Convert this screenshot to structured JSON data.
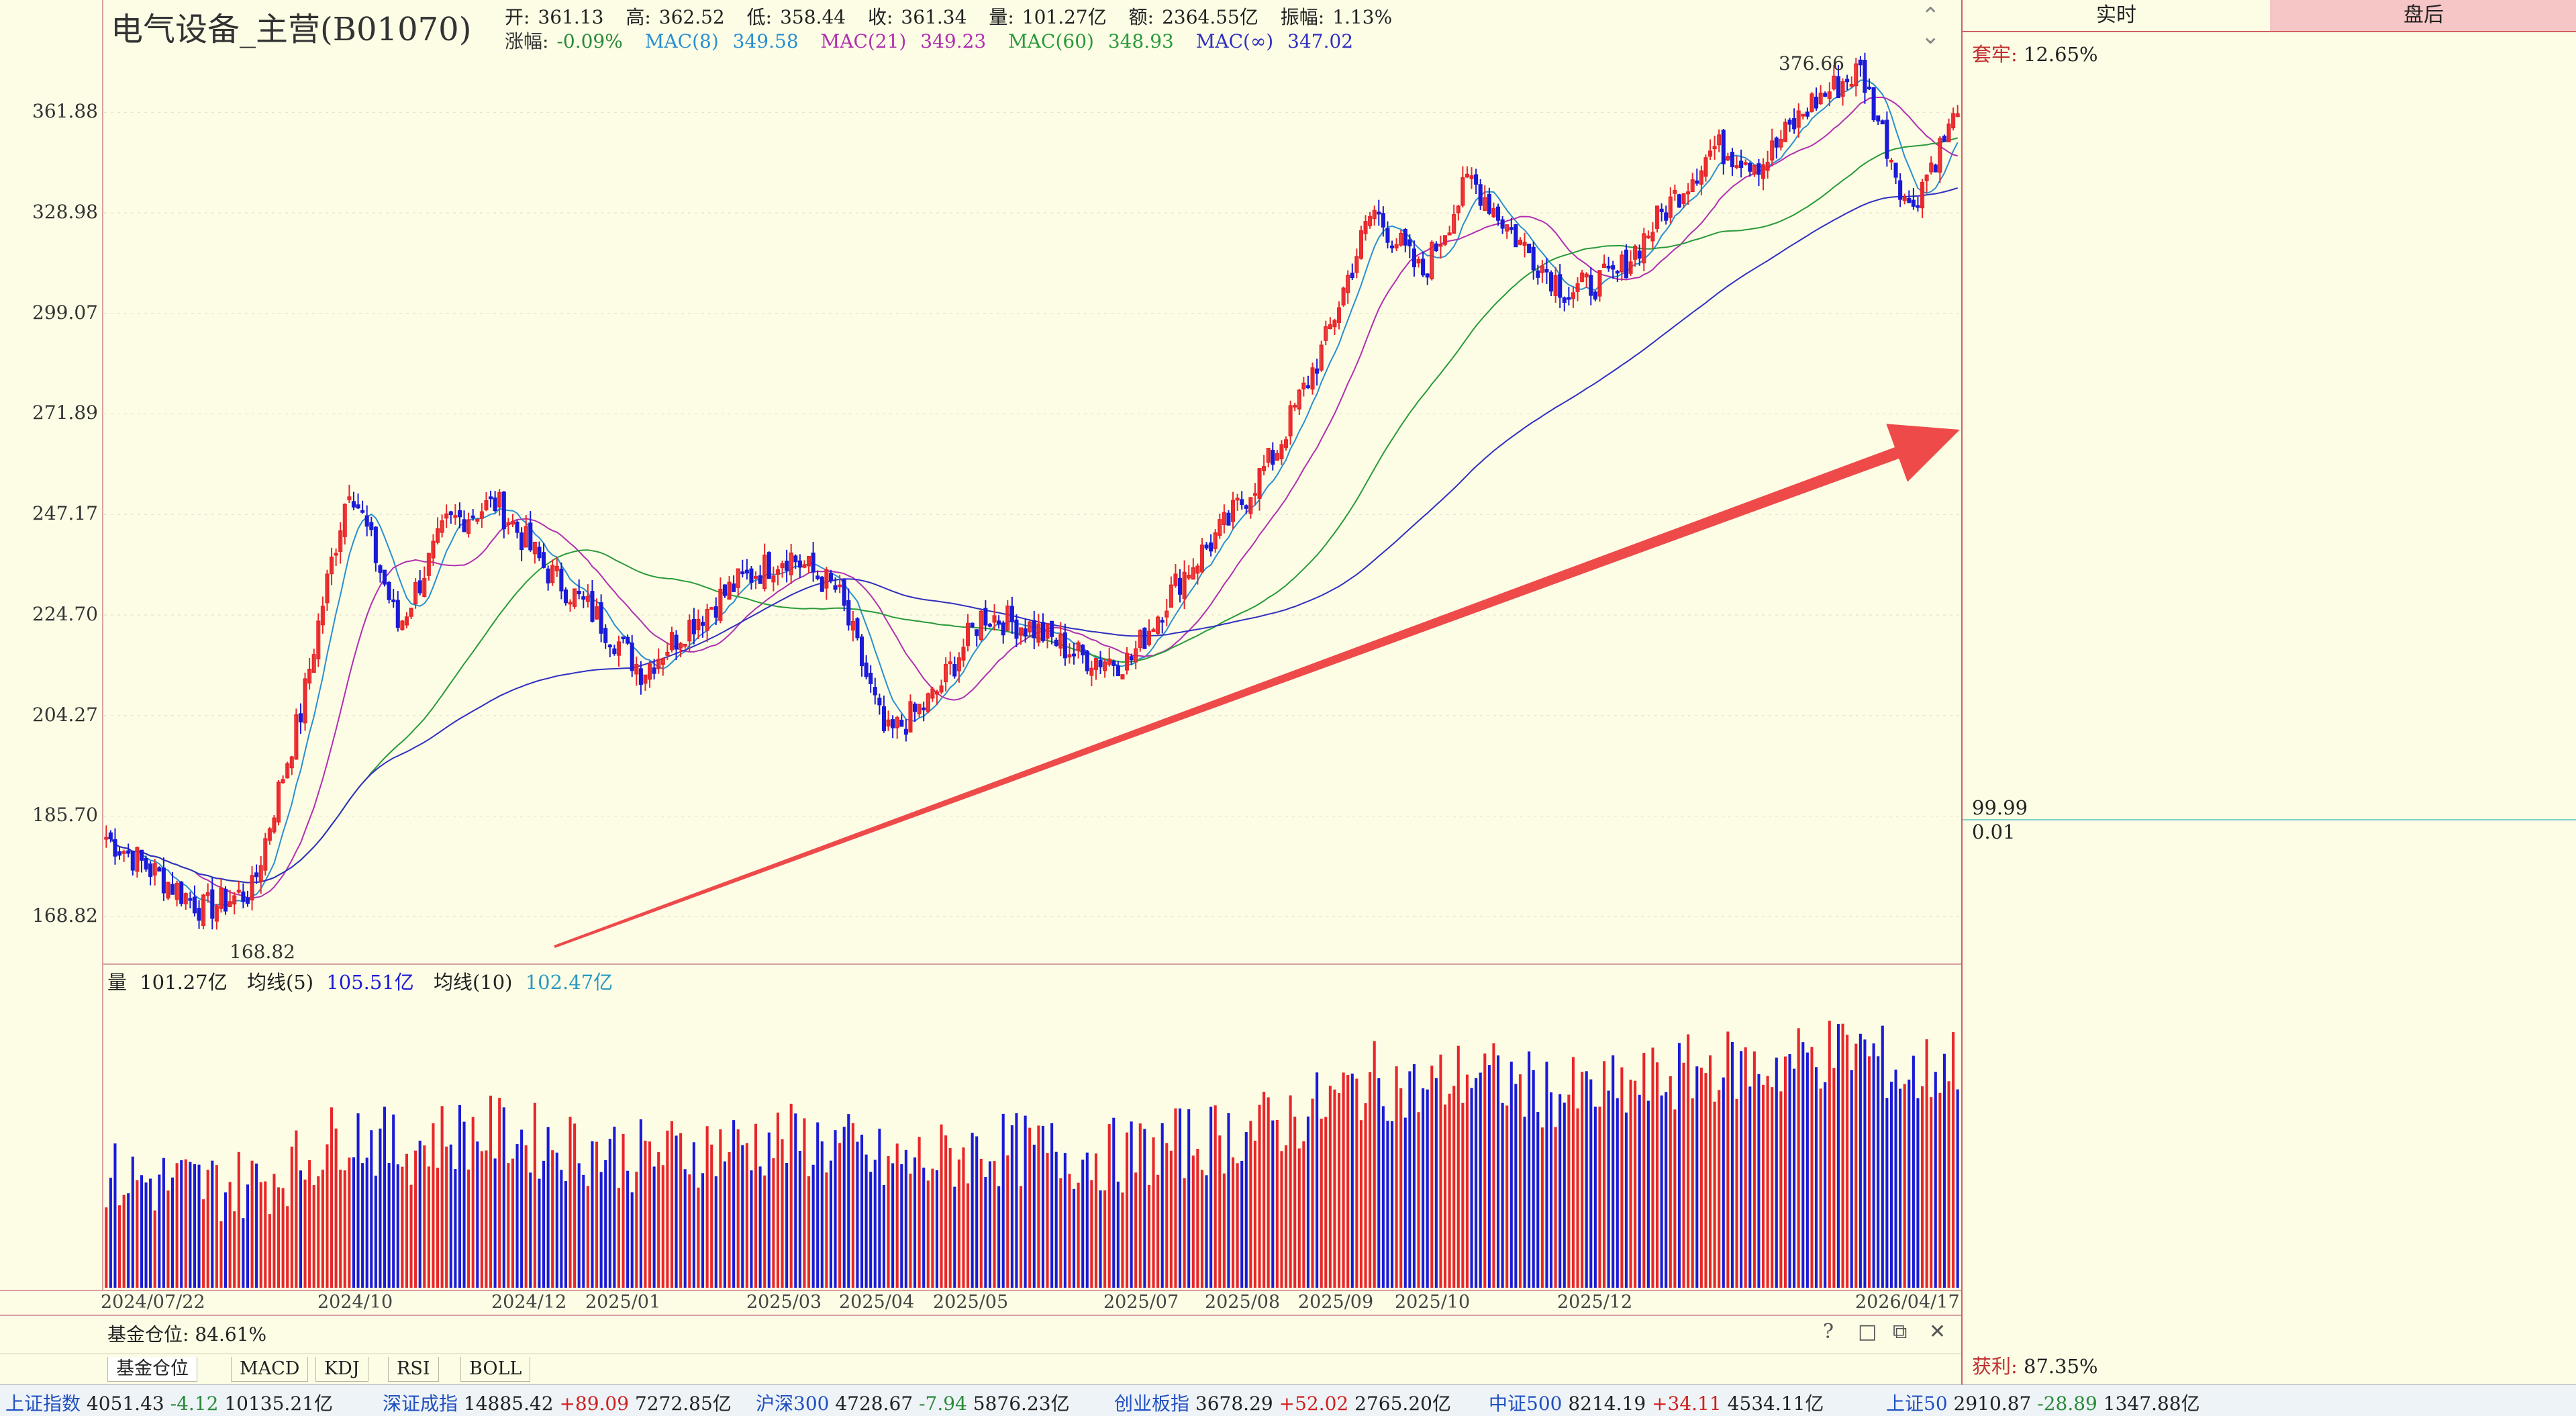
{
  "header": {
    "title": "电气设备_主营(B01070)",
    "open_label": "开:",
    "open": "361.13",
    "high_label": "高:",
    "high": "362.52",
    "low_label": "低:",
    "low": "358.44",
    "close_label": "收:",
    "close": "361.34",
    "volume_label": "量:",
    "volume": "101.27亿",
    "amount_label": "额:",
    "amount": "2364.55亿",
    "amplitude_label": "振幅:",
    "amplitude": "1.13%",
    "change_label": "涨幅:",
    "change": "-0.09%",
    "ma8_label": "MAC(8)",
    "ma8": "349.58",
    "ma21_label": "MAC(21)",
    "ma21": "349.23",
    "ma60_label": "MAC(60)",
    "ma60": "348.93",
    "mainf_label": "MAC(∞)",
    "mainf": "347.02"
  },
  "price_axis": [
    "361.88",
    "328.98",
    "299.07",
    "271.89",
    "247.17",
    "224.70",
    "204.27",
    "185.70",
    "168.82"
  ],
  "annotations": {
    "high_mark": "376.66",
    "low_mark": "168.82"
  },
  "volume_legend": {
    "vol_label": "量",
    "vol": "101.27亿",
    "ma5_label": "均线(5)",
    "ma5": "105.51亿",
    "ma10_label": "均线(10)",
    "ma10": "102.47亿"
  },
  "date_axis": [
    "2024/07/22",
    "2024/10",
    "2024/12",
    "2025/01",
    "2025/03",
    "2025/04",
    "2025/05",
    "2025/07",
    "2025/08",
    "2025/09",
    "2025/10",
    "2025/12",
    "2026/04/17"
  ],
  "fund_position": {
    "label": "基金仓位:",
    "value": "84.61%"
  },
  "window_controls": [
    "?",
    "□",
    "⧉",
    "✕"
  ],
  "indicator_tabs": [
    "基金仓位",
    "MACD",
    "KDJ",
    "RSI",
    "BOLL"
  ],
  "right_panel": {
    "tab_realtime": "实时",
    "tab_after": "盘后",
    "trapped_label": "套牢:",
    "trapped": "12.65%",
    "price_level_top": "99.99",
    "price_level_bottom": "0.01",
    "profit_label": "获利:",
    "profit": "87.35%"
  },
  "ticker": [
    {
      "name": "上证指数",
      "price": "4051.43",
      "chg": "-4.12",
      "amt": "10135.21亿"
    },
    {
      "name": "深证成指",
      "price": "14885.42",
      "chg": "+89.09",
      "amt": "7272.85亿"
    },
    {
      "name": "沪深300",
      "price": "4728.67",
      "chg": "-7.94",
      "amt": "5876.23亿"
    },
    {
      "name": "创业板指",
      "price": "3678.29",
      "chg": "+52.02",
      "amt": "2765.20亿"
    },
    {
      "name": "中证500",
      "price": "8214.19",
      "chg": "+34.11",
      "amt": "4534.11亿"
    },
    {
      "name": "上证50",
      "price": "2910.87",
      "chg": "-28.89",
      "amt": "1347.88亿"
    }
  ],
  "colors": {
    "up": "#e8262a",
    "down": "#1a1ad8",
    "ma8": "#2a8fd0",
    "ma21": "#b030b0",
    "ma60": "#2a9a3a",
    "mainf": "#3030c0",
    "arrow": "#ee4a4a",
    "bg": "#fdfde6"
  },
  "chart_data": {
    "type": "candlestick",
    "title": "电气设备_主营(B01070)",
    "price_ticks": [
      361.88,
      328.98,
      299.07,
      271.89,
      247.17,
      224.7,
      204.27,
      185.7,
      168.82
    ],
    "price_range_log": [
      162,
      385
    ],
    "anchors": [
      [
        "2024/07/22",
        182
      ],
      [
        "2024/08",
        176
      ],
      [
        "2024/09",
        170
      ],
      [
        "2024/09/24",
        173
      ],
      [
        "2024/09/30",
        205
      ],
      [
        "2024/10/08",
        255
      ],
      [
        "2024/10",
        222
      ],
      [
        "2024/11",
        245
      ],
      [
        "2024/11/15",
        250
      ],
      [
        "2024/12",
        235
      ],
      [
        "2025/01",
        225
      ],
      [
        "2025/01/15",
        213
      ],
      [
        "2025/02",
        223
      ],
      [
        "2025/03",
        232
      ],
      [
        "2025/03/20",
        238
      ],
      [
        "2025/04/03",
        230
      ],
      [
        "2025/04/07",
        200
      ],
      [
        "2025/04/15",
        208
      ],
      [
        "2025/05",
        225
      ],
      [
        "2025/05/20",
        222
      ],
      [
        "2025/06",
        216
      ],
      [
        "2025/06/20",
        215
      ],
      [
        "2025/07",
        232
      ],
      [
        "2025/08",
        245
      ],
      [
        "2025/08/20",
        262
      ],
      [
        "2025/09",
        290
      ],
      [
        "2025/09/25",
        330
      ],
      [
        "2025/10",
        310
      ],
      [
        "2025/10/15",
        340
      ],
      [
        "2025/11",
        320
      ],
      [
        "2025/11/15",
        305
      ],
      [
        "2025/12",
        310
      ],
      [
        "2025/12/20",
        330
      ],
      [
        "2026/01",
        350
      ],
      [
        "2026/02",
        345
      ],
      [
        "2026/03",
        365
      ],
      [
        "2026/03/20",
        376.66
      ],
      [
        "2026/04/05",
        330
      ],
      [
        "2026/04/17",
        361.34
      ]
    ],
    "indicators": [
      "MAC(8)",
      "MAC(21)",
      "MAC(60)",
      "MAC(∞)"
    ],
    "volume_series": [
      "量",
      "均线(5)",
      "均线(10)"
    ]
  }
}
